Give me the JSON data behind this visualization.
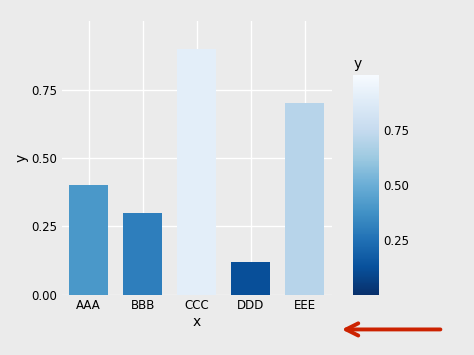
{
  "categories": [
    "AAA",
    "BBB",
    "CCC",
    "DDD",
    "EEE"
  ],
  "values": [
    0.4,
    0.3,
    0.9,
    0.12,
    0.7
  ],
  "xlabel": "x",
  "ylabel": "y",
  "ylim": [
    0,
    1.0
  ],
  "yticks": [
    0.0,
    0.25,
    0.5,
    0.75
  ],
  "bg_color": "#EBEBEB",
  "grid_color": "#FFFFFF",
  "colorbar_label": "y",
  "colorbar_ticks": [
    0.25,
    0.5,
    0.75
  ],
  "cmap": "Blues",
  "arrow_color": "#CC2200",
  "axis_label_fontsize": 10,
  "tick_fontsize": 8.5,
  "legend_fontsize": 10
}
